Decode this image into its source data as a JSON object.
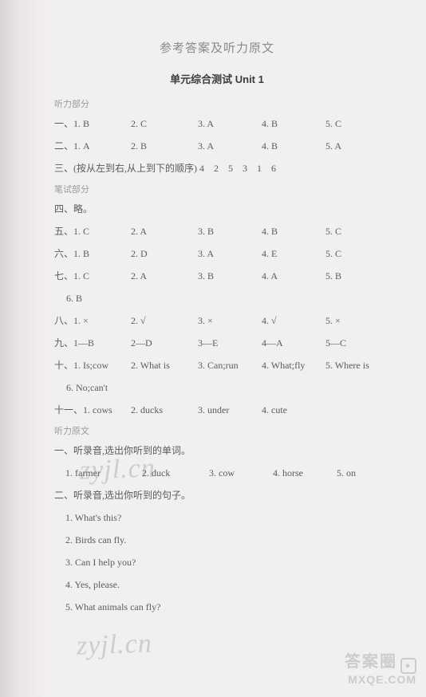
{
  "colors": {
    "bg": "#f2eff0",
    "text": "#5b5b5b",
    "muted": "#9a9a9a",
    "titleGrey": "#8a8a8a",
    "titleBlack": "#3c3c3c",
    "wm": "rgba(140,140,140,0.35)",
    "wmLogo": "rgba(150,150,150,0.4)"
  },
  "fonts": {
    "body": 12,
    "title_main": 15,
    "title_sub": 13,
    "section": 11,
    "wm": 34
  },
  "title_main": "参考答案及听力原文",
  "title_sub": "单元综合测试 Unit 1",
  "sections": {
    "listening": "听力部分",
    "written": "笔试部分",
    "script": "听力原文"
  },
  "rows": {
    "r1": {
      "c0": "一、1. B",
      "c1": "2. C",
      "c2": "3. A",
      "c3": "4. B",
      "c4": "5. C"
    },
    "r2": {
      "c0": "二、1. A",
      "c1": "2. B",
      "c2": "3. A",
      "c3": "4. B",
      "c4": "5. A"
    },
    "r3_full": "三、(按从左到右,从上到下的顺序) 4　2　5　3　1　6",
    "r4_full": "四、略。",
    "r5": {
      "c0": "五、1. C",
      "c1": "2. A",
      "c2": "3. B",
      "c3": "4. B",
      "c4": "5. C"
    },
    "r6": {
      "c0": "六、1. B",
      "c1": "2. D",
      "c2": "3. A",
      "c3": "4. E",
      "c4": "5. C"
    },
    "r7": {
      "c0": "七、1. C",
      "c1": "2. A",
      "c2": "3. B",
      "c3": "4. A",
      "c4": "5. B"
    },
    "r7b": {
      "c0": "　 6. B"
    },
    "r8": {
      "c0": "八、1. ×",
      "c1": "2. √",
      "c2": "3. ×",
      "c3": "4. √",
      "c4": "5. ×"
    },
    "r9": {
      "c0": "九、1—B",
      "c1": "2—D",
      "c2": "3—E",
      "c3": "4—A",
      "c4": "5—C"
    },
    "r10": {
      "c0": "十、1. Is;cow",
      "c1": "2. What is",
      "c2": "3. Can;run",
      "c3": "4. What;fly",
      "c4": "5. Where is"
    },
    "r10b": {
      "c0": "　 6. No;can't"
    },
    "r11": {
      "c0": "十一、1. cows",
      "c1": "2. ducks",
      "c2": "3. under",
      "c3": "4. cute"
    }
  },
  "script": {
    "s1_title": "一、听录音,选出你听到的单词。",
    "s1": {
      "c0": "1. farmer",
      "c1": "2. duck",
      "c2": "3. cow",
      "c3": "4. horse",
      "c4": "5. on"
    },
    "s2_title": "二、听录音,选出你听到的句子。",
    "s2_items": [
      "1. What's this?",
      "2. Birds can fly.",
      "3. Can I help you?",
      "4. Yes, please.",
      "5. What animals can fly?"
    ]
  },
  "watermarks": {
    "w1": "zyjl.cn",
    "w2": "zyjl.cn",
    "logo_cn": "答案圈",
    "logo_en": "MXQE.COM"
  }
}
